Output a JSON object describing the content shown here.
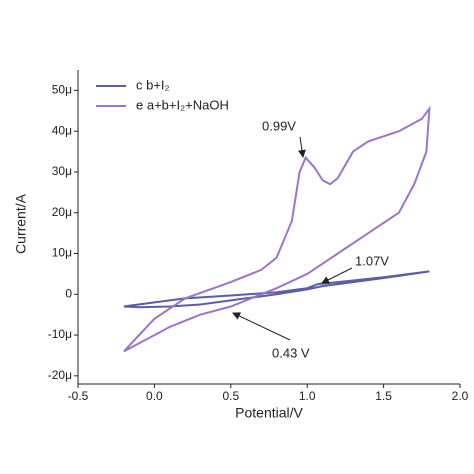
{
  "chart_data": {
    "type": "line",
    "x_label": "Potential/V",
    "y_label": "Current/A",
    "xlim": [
      -0.5,
      2.0
    ],
    "xticks": [
      -0.5,
      {
        "value": 0,
        "label": "0.0"
      },
      0.5,
      {
        "value": 1,
        "label": "1.0"
      },
      1.5,
      {
        "value": 2,
        "label": "2.0"
      }
    ],
    "ylim": [
      -2.2e-05,
      5.5e-05
    ],
    "yticks": [
      {
        "value": -2e-05,
        "label": "-20μ"
      },
      {
        "value": -1e-05,
        "label": "-10μ"
      },
      0,
      {
        "value": 1e-05,
        "label": "10μ"
      },
      {
        "value": 2e-05,
        "label": "20μ"
      },
      {
        "value": 3e-05,
        "label": "30μ"
      },
      {
        "value": 4e-05,
        "label": "40μ"
      },
      {
        "value": 5e-05,
        "label": "50μ"
      }
    ],
    "legend": "upper left",
    "series": [
      {
        "name": "c b+I₂",
        "color": "#5b5ea6",
        "x": [
          -0.2,
          0,
          0.2,
          0.5,
          0.8,
          1.0,
          1.07,
          1.2,
          1.5,
          1.8,
          1.6,
          1.3,
          1.1,
          1.0,
          0.8,
          0.5,
          0.3,
          0.1,
          -0.1,
          -0.2
        ],
        "values": [
          -3e-06,
          -2e-06,
          -1e-06,
          -3e-07,
          5e-07,
          1.5e-06,
          2.5e-06,
          3e-06,
          4.2e-06,
          5.6e-06,
          4.5e-06,
          3e-06,
          2e-06,
          1.2e-06,
          0,
          -1.5e-06,
          -2.5e-06,
          -3e-06,
          -3.2e-06,
          -3e-06
        ]
      },
      {
        "name": "e a+b+I₂+NaOH",
        "color": "#9d74c9",
        "x": [
          -0.2,
          0,
          0.2,
          0.5,
          0.7,
          0.8,
          0.9,
          0.95,
          0.99,
          1.05,
          1.1,
          1.15,
          1.2,
          1.3,
          1.4,
          1.6,
          1.75,
          1.8,
          1.78,
          1.7,
          1.6,
          1.4,
          1.2,
          1.0,
          0.8,
          0.5,
          0.3,
          0.1,
          0,
          -0.1,
          -0.2
        ],
        "values": [
          -1.4e-05,
          -6e-06,
          -1e-06,
          3e-06,
          6e-06,
          9e-06,
          1.8e-05,
          3e-05,
          3.35e-05,
          3.1e-05,
          2.8e-05,
          2.7e-05,
          2.85e-05,
          3.5e-05,
          3.75e-05,
          4e-05,
          4.3e-05,
          4.55e-05,
          3.5e-05,
          2.7e-05,
          2e-05,
          1.5e-05,
          1e-05,
          5e-06,
          1.5e-06,
          -3e-06,
          -5e-06,
          -8e-06,
          -1e-05,
          -1.2e-05,
          -1.4e-05
        ]
      }
    ],
    "annotations": [
      "0.99V",
      "1.07V",
      "0.43 V"
    ]
  }
}
